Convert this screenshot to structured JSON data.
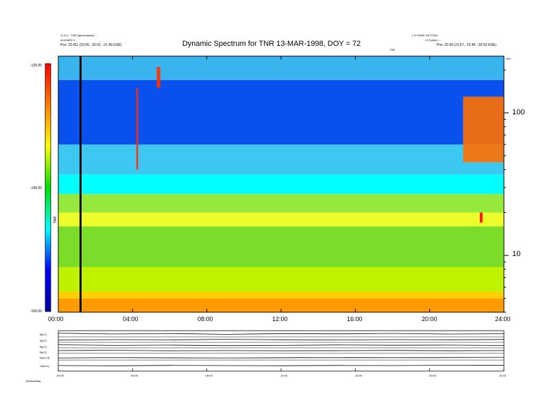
{
  "chart_data": {
    "type": "heatmap",
    "title": "Dynamic Spectrum for TNR 13-MAR-1998, DOY = 72",
    "header_left": [
      "11 6.0 ~ TNR (spectrogram) ...",
      "ALIGNED 3 ...",
      "Pos:  23.411  (23.06, -32.01, -21.49 GSE)"
    ],
    "header_right": [
      "1.10 WIND 20/TOTAL",
      "LS Ephem ...",
      "Pos:  22.69  (21.67, -22.40, -20.53 GSE)"
    ],
    "header_mid": "TNR",
    "freq_unit_label": "kHz",
    "x_axis": {
      "range_hours": [
        0,
        24
      ],
      "tick_hours": [
        0,
        4,
        8,
        12,
        16,
        20,
        24
      ],
      "tick_labels": [
        "00:00",
        "04:00",
        "08:00",
        "12:00",
        "16:00",
        "20:00",
        "24:00"
      ]
    },
    "y_axis": {
      "scale": "log",
      "range_khz": [
        4,
        250
      ],
      "tick_values": [
        10,
        100
      ],
      "tick_labels": [
        "10",
        "100"
      ]
    },
    "colorbar": {
      "range": [
        -155,
        -125
      ],
      "tick_labels": [
        "-125.00",
        "-140.00",
        "-155.00"
      ],
      "label": "TNR",
      "colors": [
        "#0000a0",
        "#0000ff",
        "#00ffff",
        "#00e000",
        "#ffff00",
        "#ff8000",
        "#ff0000"
      ]
    },
    "background_bands": [
      {
        "from_khz": 4,
        "to_khz": 5,
        "color": "#ff9a00"
      },
      {
        "from_khz": 5,
        "to_khz": 5.6,
        "color": "#ffd000"
      },
      {
        "from_khz": 5.6,
        "to_khz": 8.3,
        "color": "#bff200"
      },
      {
        "from_khz": 8.3,
        "to_khz": 16,
        "color": "#7bdc2a"
      },
      {
        "from_khz": 16,
        "to_khz": 20,
        "color": "#ecff2a"
      },
      {
        "from_khz": 20,
        "to_khz": 27,
        "color": "#96e83c"
      },
      {
        "from_khz": 27,
        "to_khz": 37,
        "color": "#00ffff"
      },
      {
        "from_khz": 37,
        "to_khz": 60,
        "color": "#3cc8f0"
      },
      {
        "from_khz": 60,
        "to_khz": 170,
        "color": "#0a50ee"
      },
      {
        "from_khz": 170,
        "to_khz": 250,
        "color": "#3ab4ee"
      }
    ],
    "features": [
      {
        "kind": "data-gap-line",
        "hour": 1.2,
        "color": "#000000"
      },
      {
        "kind": "burst",
        "start_hour": 21.8,
        "end_hour": 24,
        "from_khz": 45,
        "to_khz": 130,
        "color": "#ff7000"
      },
      {
        "kind": "burst",
        "start_hour": 4.2,
        "end_hour": 4.3,
        "from_khz": 40,
        "to_khz": 150,
        "color": "#ff3000"
      },
      {
        "kind": "burst",
        "start_hour": 5.3,
        "end_hour": 5.5,
        "from_khz": 150,
        "to_khz": 210,
        "color": "#ff3000"
      },
      {
        "kind": "burst",
        "start_hour": 22.7,
        "end_hour": 22.85,
        "from_khz": 17,
        "to_khz": 20,
        "color": "#ff0000"
      }
    ],
    "subpanels": {
      "labels": [
        "B(nT)",
        "B(nT)",
        "B(nT)",
        "B(nT)",
        "N(cm-3)",
        "V(km/s)"
      ],
      "traces": [
        [
          0.6,
          0.45,
          0.55,
          0.4,
          0.52,
          0.48,
          0.56,
          0.44,
          0.5
        ],
        [
          0.4,
          0.5,
          0.45,
          0.55,
          0.48,
          0.42,
          0.5,
          0.46,
          0.52
        ],
        [
          0.55,
          0.45,
          0.5,
          0.4,
          0.45,
          0.52,
          0.48,
          0.5,
          0.44
        ],
        [
          0.5,
          0.55,
          0.45,
          0.5,
          0.45,
          0.48,
          0.52,
          0.46,
          0.5
        ],
        [
          0.3,
          0.35,
          0.32,
          0.3,
          0.33,
          0.36,
          0.34,
          0.38,
          0.4
        ],
        [
          0.5,
          0.48,
          0.52,
          0.5,
          0.49,
          0.51,
          0.5,
          0.53,
          0.52
        ]
      ],
      "tick_labels": [
        "00:00",
        "04:00",
        "08:00",
        "12:00",
        "16:00",
        "20:00",
        "24:00"
      ]
    },
    "footer": "Marker/Mkq"
  }
}
